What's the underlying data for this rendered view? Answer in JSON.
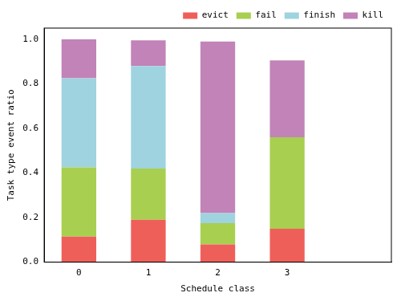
{
  "chart_data": {
    "type": "bar",
    "stacked": true,
    "x_label": "Schedule class",
    "y_label": "Task type event ratio",
    "categories": [
      "0",
      "1",
      "2",
      "3",
      null
    ],
    "series": [
      {
        "name": "evict",
        "color": "#ef5f5a",
        "values": [
          0.115,
          0.19,
          0.08,
          0.15,
          0
        ]
      },
      {
        "name": "fail",
        "color": "#a8cf4f",
        "values": [
          0.31,
          0.23,
          0.095,
          0.41,
          0
        ]
      },
      {
        "name": "finish",
        "color": "#9fd3e0",
        "values": [
          0.4,
          0.46,
          0.045,
          0,
          0
        ]
      },
      {
        "name": "kill",
        "color": "#c183b8",
        "values": [
          0.175,
          0.115,
          0.77,
          0.345,
          0
        ]
      }
    ],
    "ylim": [
      0,
      1.05
    ],
    "yticks": [
      {
        "value": 0,
        "label": "0.0"
      },
      0.2,
      0.4,
      0.6,
      0.8,
      {
        "value": 1,
        "label": "1.0"
      }
    ],
    "legend": "upper right",
    "grid": false
  }
}
